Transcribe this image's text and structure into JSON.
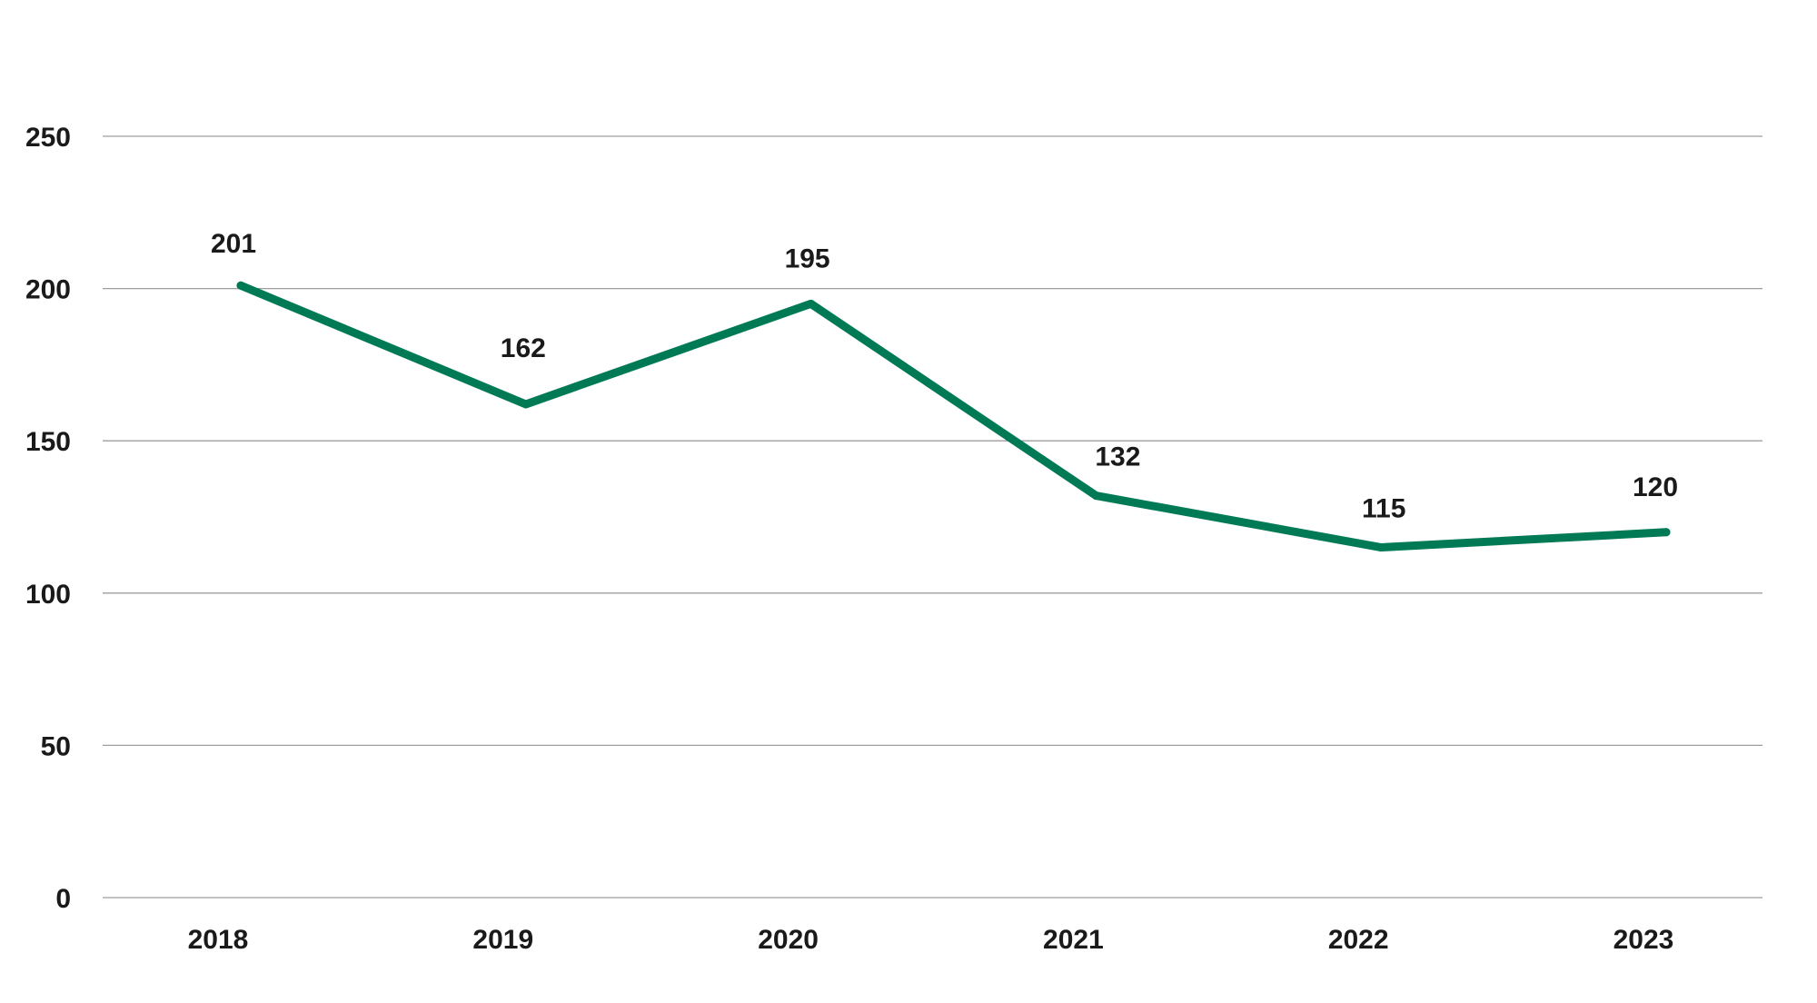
{
  "chart_data": {
    "type": "line",
    "title": "",
    "xlabel": "",
    "ylabel": "",
    "categories": [
      "2018",
      "2019",
      "2020",
      "2021",
      "2022",
      "2023"
    ],
    "series": [
      {
        "values": [
          201,
          162,
          195,
          132,
          115,
          120
        ]
      }
    ],
    "ylim": [
      0,
      250
    ],
    "yticks": [
      0,
      50,
      100,
      150,
      200,
      250
    ],
    "data_labels": [
      "201",
      "162",
      "195",
      "132",
      "115",
      "120"
    ],
    "grid": true,
    "legend": "none"
  },
  "colors": {
    "line": "#007a55",
    "grid": "#9e9e9e",
    "text": "#1a1a1a"
  }
}
